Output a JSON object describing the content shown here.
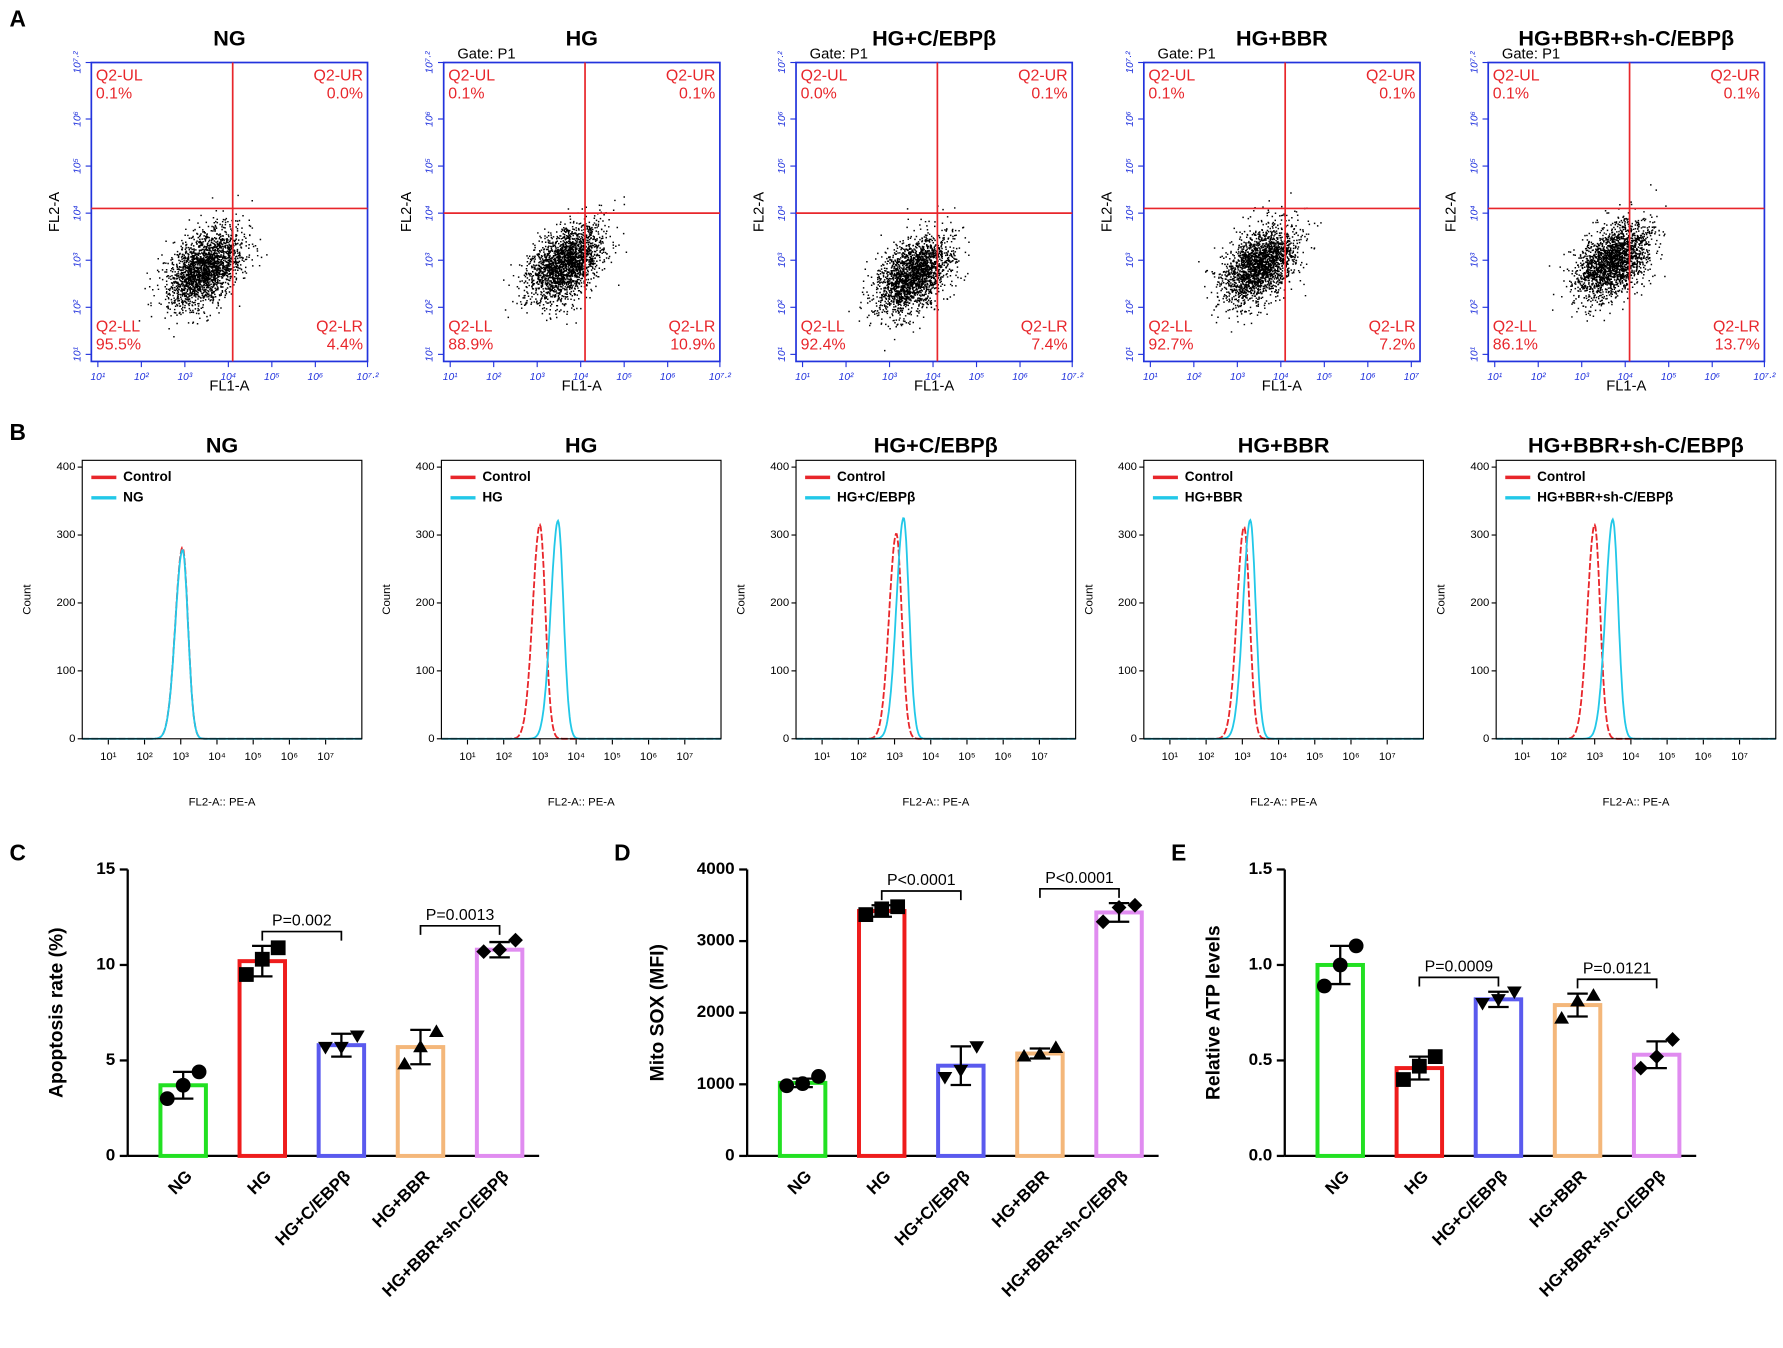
{
  "panel_labels": [
    "A",
    "B",
    "C",
    "D",
    "E"
  ],
  "chart_data": [
    {
      "type": "flow_scatter",
      "title": "NG",
      "x_label": "FL1-A",
      "y_label": "FL2-A",
      "xlim": [
        0.85,
        7.2
      ],
      "ylim": [
        0.85,
        7.2
      ],
      "xticks": [
        {
          "value": 1,
          "label": "10¹"
        },
        {
          "value": 2,
          "label": "10²"
        },
        {
          "value": 3,
          "label": "10³"
        },
        {
          "value": 4,
          "label": "10⁴"
        },
        {
          "value": 5,
          "label": "10⁵"
        },
        {
          "value": 6,
          "label": "10⁶"
        },
        {
          "value": 7.2,
          "label": "10⁷·²"
        }
      ],
      "yticks": [
        {
          "value": 1,
          "label": "10¹"
        },
        {
          "value": 2,
          "label": "10²"
        },
        {
          "value": 3,
          "label": "10³"
        },
        {
          "value": 4,
          "label": "10⁴"
        },
        {
          "value": 5,
          "label": "10⁵"
        },
        {
          "value": 6,
          "label": "10⁶"
        },
        {
          "value": 7.2,
          "label": "10⁷·²"
        }
      ],
      "gate": [
        4.1,
        4.1
      ],
      "cloud_center": [
        3.45,
        2.85
      ],
      "quadrants": [
        {
          "name": "Q2-UL",
          "value": 0.1,
          "label": "0.1%"
        },
        {
          "name": "Q2-UR",
          "value": 0.0,
          "label": "0.0%"
        },
        {
          "name": "Q2-LL",
          "value": 95.5,
          "label": "95.5%"
        },
        {
          "name": "Q2-LR",
          "value": 4.4,
          "label": "4.4%"
        }
      ]
    },
    {
      "type": "flow_scatter",
      "title": "HG",
      "gate_label": "Gate: P1",
      "x_label": "FL1-A",
      "y_label": "FL2-A",
      "xlim": [
        0.85,
        7.2
      ],
      "ylim": [
        0.85,
        7.2
      ],
      "xticks": [
        {
          "value": 1,
          "label": "10¹"
        },
        {
          "value": 2,
          "label": "10²"
        },
        {
          "value": 3,
          "label": "10³"
        },
        {
          "value": 4,
          "label": "10⁴"
        },
        {
          "value": 5,
          "label": "10⁵"
        },
        {
          "value": 6,
          "label": "10⁶"
        },
        {
          "value": 7.2,
          "label": "10⁷·²"
        }
      ],
      "yticks": [
        {
          "value": 1,
          "label": "10¹"
        },
        {
          "value": 2,
          "label": "10²"
        },
        {
          "value": 3,
          "label": "10³"
        },
        {
          "value": 4,
          "label": "10⁴"
        },
        {
          "value": 5,
          "label": "10⁵"
        },
        {
          "value": 6,
          "label": "10⁶"
        },
        {
          "value": 7.2,
          "label": "10⁷·²"
        }
      ],
      "gate": [
        4.1,
        4.0
      ],
      "cloud_center": [
        3.65,
        2.95
      ],
      "quadrants": [
        {
          "name": "Q2-UL",
          "value": 0.1,
          "label": "0.1%"
        },
        {
          "name": "Q2-UR",
          "value": 0.1,
          "label": "0.1%"
        },
        {
          "name": "Q2-LL",
          "value": 88.9,
          "label": "88.9%"
        },
        {
          "name": "Q2-LR",
          "value": 10.9,
          "label": "10.9%"
        }
      ]
    },
    {
      "type": "flow_scatter",
      "title": "HG+C/EBPβ",
      "gate_label": "Gate: P1",
      "x_label": "FL1-A",
      "y_label": "FL2-A",
      "xlim": [
        0.85,
        7.2
      ],
      "ylim": [
        0.85,
        7.2
      ],
      "xticks": [
        {
          "value": 1,
          "label": "10¹"
        },
        {
          "value": 2,
          "label": "10²"
        },
        {
          "value": 3,
          "label": "10³"
        },
        {
          "value": 4,
          "label": "10⁴"
        },
        {
          "value": 5,
          "label": "10⁵"
        },
        {
          "value": 6,
          "label": "10⁶"
        },
        {
          "value": 7.2,
          "label": "10⁷·²"
        }
      ],
      "yticks": [
        {
          "value": 1,
          "label": "10¹"
        },
        {
          "value": 2,
          "label": "10²"
        },
        {
          "value": 3,
          "label": "10³"
        },
        {
          "value": 4,
          "label": "10⁴"
        },
        {
          "value": 5,
          "label": "10⁵"
        },
        {
          "value": 6,
          "label": "10⁶"
        },
        {
          "value": 7.2,
          "label": "10⁷·²"
        }
      ],
      "gate": [
        4.1,
        4.0
      ],
      "cloud_center": [
        3.55,
        2.7
      ],
      "quadrants": [
        {
          "name": "Q2-UL",
          "value": 0.0,
          "label": "0.0%"
        },
        {
          "name": "Q2-UR",
          "value": 0.1,
          "label": "0.1%"
        },
        {
          "name": "Q2-LL",
          "value": 92.4,
          "label": "92.4%"
        },
        {
          "name": "Q2-LR",
          "value": 7.4,
          "label": "7.4%"
        }
      ]
    },
    {
      "type": "flow_scatter",
      "title": "HG+BBR",
      "gate_label": "Gate: P1",
      "x_label": "FL1-A",
      "y_label": "FL2-A",
      "xlim": [
        0.85,
        7.2
      ],
      "ylim": [
        0.85,
        7.2
      ],
      "xticks": [
        {
          "value": 1,
          "label": "10¹"
        },
        {
          "value": 2,
          "label": "10²"
        },
        {
          "value": 3,
          "label": "10³"
        },
        {
          "value": 4,
          "label": "10⁴"
        },
        {
          "value": 5,
          "label": "10⁵"
        },
        {
          "value": 6,
          "label": "10⁶"
        },
        {
          "value": 7,
          "label": "10⁷"
        }
      ],
      "yticks": [
        {
          "value": 1,
          "label": "10¹"
        },
        {
          "value": 2,
          "label": "10²"
        },
        {
          "value": 3,
          "label": "10³"
        },
        {
          "value": 4,
          "label": "10⁴"
        },
        {
          "value": 5,
          "label": "10⁵"
        },
        {
          "value": 6,
          "label": "10⁶"
        },
        {
          "value": 7.2,
          "label": "10⁷·²"
        }
      ],
      "gate": [
        4.1,
        4.1
      ],
      "cloud_center": [
        3.5,
        2.9
      ],
      "quadrants": [
        {
          "name": "Q2-UL",
          "value": 0.1,
          "label": "0.1%"
        },
        {
          "name": "Q2-UR",
          "value": 0.1,
          "label": "0.1%"
        },
        {
          "name": "Q2-LL",
          "value": 92.7,
          "label": "92.7%"
        },
        {
          "name": "Q2-LR",
          "value": 7.2,
          "label": "7.2%"
        }
      ]
    },
    {
      "type": "flow_scatter",
      "title": "HG+BBR+sh-C/EBPβ",
      "gate_label": "Gate: P1",
      "x_label": "FL1-A",
      "y_label": "FL2-A",
      "xlim": [
        0.85,
        7.2
      ],
      "ylim": [
        0.85,
        7.2
      ],
      "xticks": [
        {
          "value": 1,
          "label": "10¹"
        },
        {
          "value": 2,
          "label": "10²"
        },
        {
          "value": 3,
          "label": "10³"
        },
        {
          "value": 4,
          "label": "10⁴"
        },
        {
          "value": 5,
          "label": "10⁵"
        },
        {
          "value": 6,
          "label": "10⁶"
        },
        {
          "value": 7.2,
          "label": "10⁷·²"
        }
      ],
      "yticks": [
        {
          "value": 1,
          "label": "10¹"
        },
        {
          "value": 2,
          "label": "10²"
        },
        {
          "value": 3,
          "label": "10³"
        },
        {
          "value": 4,
          "label": "10⁴"
        },
        {
          "value": 5,
          "label": "10⁵"
        },
        {
          "value": 6,
          "label": "10⁶"
        },
        {
          "value": 7.2,
          "label": "10⁷·²"
        }
      ],
      "gate": [
        4.1,
        4.1
      ],
      "cloud_center": [
        3.7,
        3.0
      ],
      "quadrants": [
        {
          "name": "Q2-UL",
          "value": 0.1,
          "label": "0.1%"
        },
        {
          "name": "Q2-UR",
          "value": 0.1,
          "label": "0.1%"
        },
        {
          "name": "Q2-LL",
          "value": 86.1,
          "label": "86.1%"
        },
        {
          "name": "Q2-LR",
          "value": 13.7,
          "label": "13.7%"
        }
      ]
    },
    {
      "type": "histogram",
      "title": "NG",
      "x_label": "FL2-A:: PE-A",
      "y_label": "Count",
      "xlim": [
        0.28,
        8.0
      ],
      "ylim": [
        0,
        410
      ],
      "yticks": [
        0,
        100,
        200,
        300,
        400
      ],
      "xticks": [
        {
          "value": 1,
          "label": "10¹"
        },
        {
          "value": 2,
          "label": "10²"
        },
        {
          "value": 3,
          "label": "10³"
        },
        {
          "value": 4,
          "label": "10⁴"
        },
        {
          "value": 5,
          "label": "10⁵"
        },
        {
          "value": 6,
          "label": "10⁶"
        },
        {
          "value": 7,
          "label": "10⁷"
        }
      ],
      "series": [
        {
          "name": "Control",
          "color": "#e8262b",
          "peak": 3.05,
          "height": 282
        },
        {
          "name": "NG",
          "color": "#22c8e8",
          "peak": 3.05,
          "height": 278
        }
      ]
    },
    {
      "type": "histogram",
      "title": "HG",
      "x_label": "FL2-A:: PE-A",
      "y_label": "Count",
      "xlim": [
        0.28,
        8.0
      ],
      "ylim": [
        0,
        410
      ],
      "yticks": [
        0,
        100,
        200,
        300,
        400
      ],
      "xticks": [
        {
          "value": 1,
          "label": "10¹"
        },
        {
          "value": 2,
          "label": "10²"
        },
        {
          "value": 3,
          "label": "10³"
        },
        {
          "value": 4,
          "label": "10⁴"
        },
        {
          "value": 5,
          "label": "10⁵"
        },
        {
          "value": 6,
          "label": "10⁶"
        },
        {
          "value": 7,
          "label": "10⁷"
        }
      ],
      "series": [
        {
          "name": "Control",
          "color": "#e8262b",
          "peak": 3.0,
          "height": 315
        },
        {
          "name": "HG",
          "color": "#22c8e8",
          "peak": 3.5,
          "height": 321
        }
      ]
    },
    {
      "type": "histogram",
      "title": "HG+C/EBPβ",
      "x_label": "FL2-A:: PE-A",
      "y_label": "Count",
      "xlim": [
        0.28,
        8.0
      ],
      "ylim": [
        0,
        410
      ],
      "yticks": [
        0,
        100,
        200,
        300,
        400
      ],
      "xticks": [
        {
          "value": 1,
          "label": "10¹"
        },
        {
          "value": 2,
          "label": "10²"
        },
        {
          "value": 3,
          "label": "10³"
        },
        {
          "value": 4,
          "label": "10⁴"
        },
        {
          "value": 5,
          "label": "10⁵"
        },
        {
          "value": 6,
          "label": "10⁶"
        },
        {
          "value": 7,
          "label": "10⁷"
        }
      ],
      "series": [
        {
          "name": "Control",
          "color": "#e8262b",
          "peak": 3.05,
          "height": 302
        },
        {
          "name": "HG+C/EBPβ",
          "color": "#22c8e8",
          "peak": 3.25,
          "height": 325
        }
      ]
    },
    {
      "type": "histogram",
      "title": "HG+BBR",
      "x_label": "FL2-A:: PE-A",
      "y_label": "Count",
      "xlim": [
        0.28,
        8.0
      ],
      "ylim": [
        0,
        410
      ],
      "yticks": [
        0,
        100,
        200,
        300,
        400
      ],
      "xticks": [
        {
          "value": 1,
          "label": "10¹"
        },
        {
          "value": 2,
          "label": "10²"
        },
        {
          "value": 3,
          "label": "10³"
        },
        {
          "value": 4,
          "label": "10⁴"
        },
        {
          "value": 5,
          "label": "10⁵"
        },
        {
          "value": 6,
          "label": "10⁶"
        },
        {
          "value": 7,
          "label": "10⁷"
        }
      ],
      "series": [
        {
          "name": "Control",
          "color": "#e8262b",
          "peak": 3.05,
          "height": 312
        },
        {
          "name": "HG+BBR",
          "color": "#22c8e8",
          "peak": 3.22,
          "height": 322
        }
      ]
    },
    {
      "type": "histogram",
      "title": "HG+BBR+sh-C/EBPβ",
      "x_label": "FL2-A:: PE-A",
      "y_label": "Count",
      "xlim": [
        0.28,
        8.0
      ],
      "ylim": [
        0,
        410
      ],
      "yticks": [
        0,
        100,
        200,
        300,
        400
      ],
      "xticks": [
        {
          "value": 1,
          "label": "10¹"
        },
        {
          "value": 2,
          "label": "10²"
        },
        {
          "value": 3,
          "label": "10³"
        },
        {
          "value": 4,
          "label": "10⁴"
        },
        {
          "value": 5,
          "label": "10⁵"
        },
        {
          "value": 6,
          "label": "10⁶"
        },
        {
          "value": 7,
          "label": "10⁷"
        }
      ],
      "series": [
        {
          "name": "Control",
          "color": "#e8262b",
          "peak": 3.0,
          "height": 315
        },
        {
          "name": "HG+BBR+sh-C/EBPβ",
          "color": "#22c8e8",
          "peak": 3.5,
          "height": 323
        }
      ]
    },
    {
      "type": "bar",
      "y_label": "Apoptosis rate (%)",
      "categories": [
        "NG",
        "HG",
        "HG+C/EBPβ",
        "HG+BBR",
        "HG+BBR+sh-C/EBPβ"
      ],
      "colors": [
        "#22e022",
        "#ee1c1c",
        "#5a5aee",
        "#f4b77a",
        "#e08cf0"
      ],
      "markers": [
        "circle",
        "square",
        "triangle-down",
        "triangle-up",
        "diamond"
      ],
      "values": [
        3.7,
        10.2,
        5.8,
        5.7,
        10.8
      ],
      "errors": [
        0.7,
        0.8,
        0.6,
        0.9,
        0.4
      ],
      "points": [
        [
          3.0,
          3.7,
          4.4
        ],
        [
          9.5,
          10.3,
          10.9
        ],
        [
          5.7,
          5.7,
          6.3
        ],
        [
          4.8,
          5.7,
          6.5
        ],
        [
          10.7,
          10.8,
          11.3
        ]
      ],
      "ylim": [
        0,
        15
      ],
      "yticks": [
        0,
        5,
        10,
        15
      ],
      "annotations": [
        {
          "from": 1,
          "to": 2,
          "text": "P=0.002"
        },
        {
          "from": 3,
          "to": 4,
          "text": "P=0.0013"
        }
      ]
    },
    {
      "type": "bar",
      "y_label": "Mito SOX (MFI)",
      "categories": [
        "NG",
        "HG",
        "HG+C/EBPβ",
        "HG+BBR",
        "HG+BBR+sh-C/EBPβ"
      ],
      "colors": [
        "#22e022",
        "#ee1c1c",
        "#5a5aee",
        "#f4b77a",
        "#e08cf0"
      ],
      "markers": [
        "circle",
        "square",
        "triangle-down",
        "triangle-up",
        "diamond"
      ],
      "values": [
        1020,
        3420,
        1260,
        1430,
        3400
      ],
      "errors": [
        60,
        80,
        270,
        70,
        130
      ],
      "points": [
        [
          980,
          1010,
          1110
        ],
        [
          3370,
          3450,
          3480
        ],
        [
          1100,
          1200,
          1530
        ],
        [
          1390,
          1420,
          1510
        ],
        [
          3270,
          3470,
          3500
        ]
      ],
      "ylim": [
        0,
        4000
      ],
      "yticks": [
        0,
        1000,
        2000,
        3000,
        4000
      ],
      "annotations": [
        {
          "from": 1,
          "to": 2,
          "text": "P<0.0001"
        },
        {
          "from": 3,
          "to": 4,
          "text": "P<0.0001"
        }
      ]
    },
    {
      "type": "bar",
      "y_label": "Relative ATP levels",
      "categories": [
        "NG",
        "HG",
        "HG+C/EBPβ",
        "HG+BBR",
        "HG+BBR+sh-C/EBPβ"
      ],
      "colors": [
        "#22e022",
        "#ee1c1c",
        "#5a5aee",
        "#f4b77a",
        "#e08cf0"
      ],
      "markers": [
        "circle",
        "square",
        "triangle-down",
        "triangle-up",
        "diamond"
      ],
      "values": [
        1.0,
        0.46,
        0.82,
        0.79,
        0.53
      ],
      "errors": [
        0.1,
        0.06,
        0.04,
        0.06,
        0.07
      ],
      "points": [
        [
          0.89,
          1.0,
          1.1
        ],
        [
          0.4,
          0.47,
          0.52
        ],
        [
          0.8,
          0.82,
          0.86
        ],
        [
          0.72,
          0.81,
          0.84
        ],
        [
          0.46,
          0.52,
          0.61
        ]
      ],
      "ylim": [
        0,
        1.5
      ],
      "yticks": [
        {
          "value": 0,
          "label": "0.0"
        },
        0.5,
        {
          "value": 1,
          "label": "1.0"
        },
        1.5
      ],
      "annotations": [
        {
          "from": 1,
          "to": 2,
          "text": "P=0.0009"
        },
        {
          "from": 3,
          "to": 4,
          "text": "P=0.0121"
        }
      ]
    }
  ]
}
